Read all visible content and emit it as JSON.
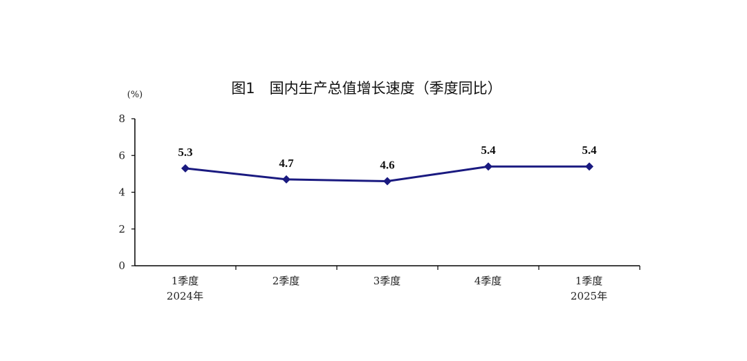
{
  "chart_data": {
    "type": "line",
    "title": "图1　国内生产总值增长速度（季度同比）",
    "ylabel": "(%)",
    "xlabel": "",
    "ylim": [
      0,
      8
    ],
    "yticks": [
      "0",
      "2",
      "4",
      "6",
      "8"
    ],
    "grid": false,
    "legend": "none",
    "categories": [
      {
        "line1": "1季度",
        "line2": "2024年"
      },
      {
        "line1": "2季度",
        "line2": ""
      },
      {
        "line1": "3季度",
        "line2": ""
      },
      {
        "line1": "4季度",
        "line2": ""
      },
      {
        "line1": "1季度",
        "line2": "2025年"
      }
    ],
    "series": [
      {
        "values": [
          5.3,
          4.7,
          4.6,
          5.4,
          5.4
        ],
        "labels": [
          "5.3",
          "4.7",
          "4.6",
          "5.4",
          "5.4"
        ],
        "color": "#1a1a80"
      }
    ]
  }
}
